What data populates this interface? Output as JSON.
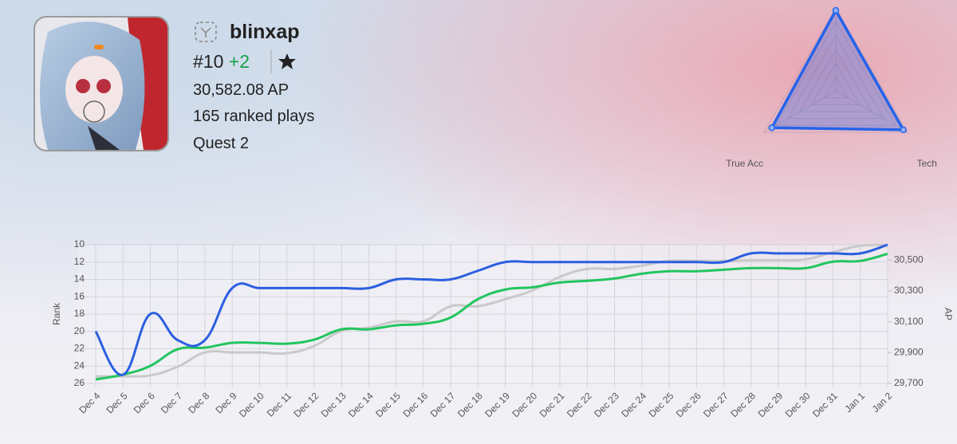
{
  "profile": {
    "username": "blinxap",
    "rank": "#10",
    "rank_change": "+2",
    "ap": "30,582.08 AP",
    "ranked_plays": "165 ranked plays",
    "platform": "Quest 2"
  },
  "chart_data": [
    {
      "type": "radar",
      "categories": [
        null,
        "Tech",
        "True Acc"
      ],
      "values": [
        0.97,
        0.94,
        0.89
      ],
      "color": "#2563eb",
      "ylim": [
        0,
        1
      ]
    },
    {
      "type": "line",
      "y_label": "Rank",
      "y2_label": "AP",
      "categories": [
        "Dec 4",
        "Dec 5",
        "Dec 6",
        "Dec 7",
        "Dec 8",
        "Dec 9",
        "Dec 10",
        "Dec 11",
        "Dec 12",
        "Dec 13",
        "Dec 14",
        "Dec 15",
        "Dec 16",
        "Dec 17",
        "Dec 18",
        "Dec 19",
        "Dec 20",
        "Dec 21",
        "Dec 22",
        "Dec 23",
        "Dec 24",
        "Dec 25",
        "Dec 26",
        "Dec 27",
        "Dec 28",
        "Dec 29",
        "Dec 30",
        "Dec 31",
        "Jan 1",
        "Jan 2"
      ],
      "series": [
        {
          "color": "#c9c9c9",
          "axis": "y2",
          "values": [
            29746,
            29746,
            29752,
            29808,
            29901,
            29901,
            29901,
            29896,
            29943,
            30041,
            30061,
            30103,
            30103,
            30201,
            30201,
            30247,
            30304,
            30392,
            30443,
            30443,
            30464,
            30495,
            30495,
            30495,
            30500,
            30500,
            30505,
            30552,
            30593,
            30598
          ]
        },
        {
          "color": "#22c55e",
          "axis": "y2",
          "values": [
            29726,
            29757,
            29814,
            29922,
            29932,
            29963,
            29963,
            29958,
            29984,
            30051,
            30051,
            30077,
            30087,
            30128,
            30247,
            30309,
            30324,
            30355,
            30366,
            30381,
            30412,
            30428,
            30428,
            30438,
            30448,
            30448,
            30448,
            30490,
            30495,
            30541
          ]
        },
        {
          "color": "#2b5fe0",
          "values": [
            20,
            25,
            18,
            21,
            21,
            15,
            15,
            15,
            15,
            15,
            15,
            14,
            14,
            14,
            13,
            12,
            12,
            12,
            12,
            12,
            12,
            12,
            12,
            12,
            11,
            11,
            11,
            11,
            11,
            10
          ]
        }
      ],
      "ylim": [
        10,
        26
      ],
      "y_inverted": true,
      "yticks": [
        10,
        12,
        14,
        16,
        18,
        20,
        22,
        24,
        26
      ],
      "y2lim": [
        29700,
        30600
      ],
      "y2ticks": [
        {
          "value": 29700,
          "label": "29,700"
        },
        {
          "value": 29900,
          "label": "29,900"
        },
        {
          "value": 30100,
          "label": "30,100"
        },
        {
          "value": 30300,
          "label": "30,300"
        },
        {
          "value": 30500,
          "label": "30,500"
        }
      ],
      "grid": true
    }
  ]
}
